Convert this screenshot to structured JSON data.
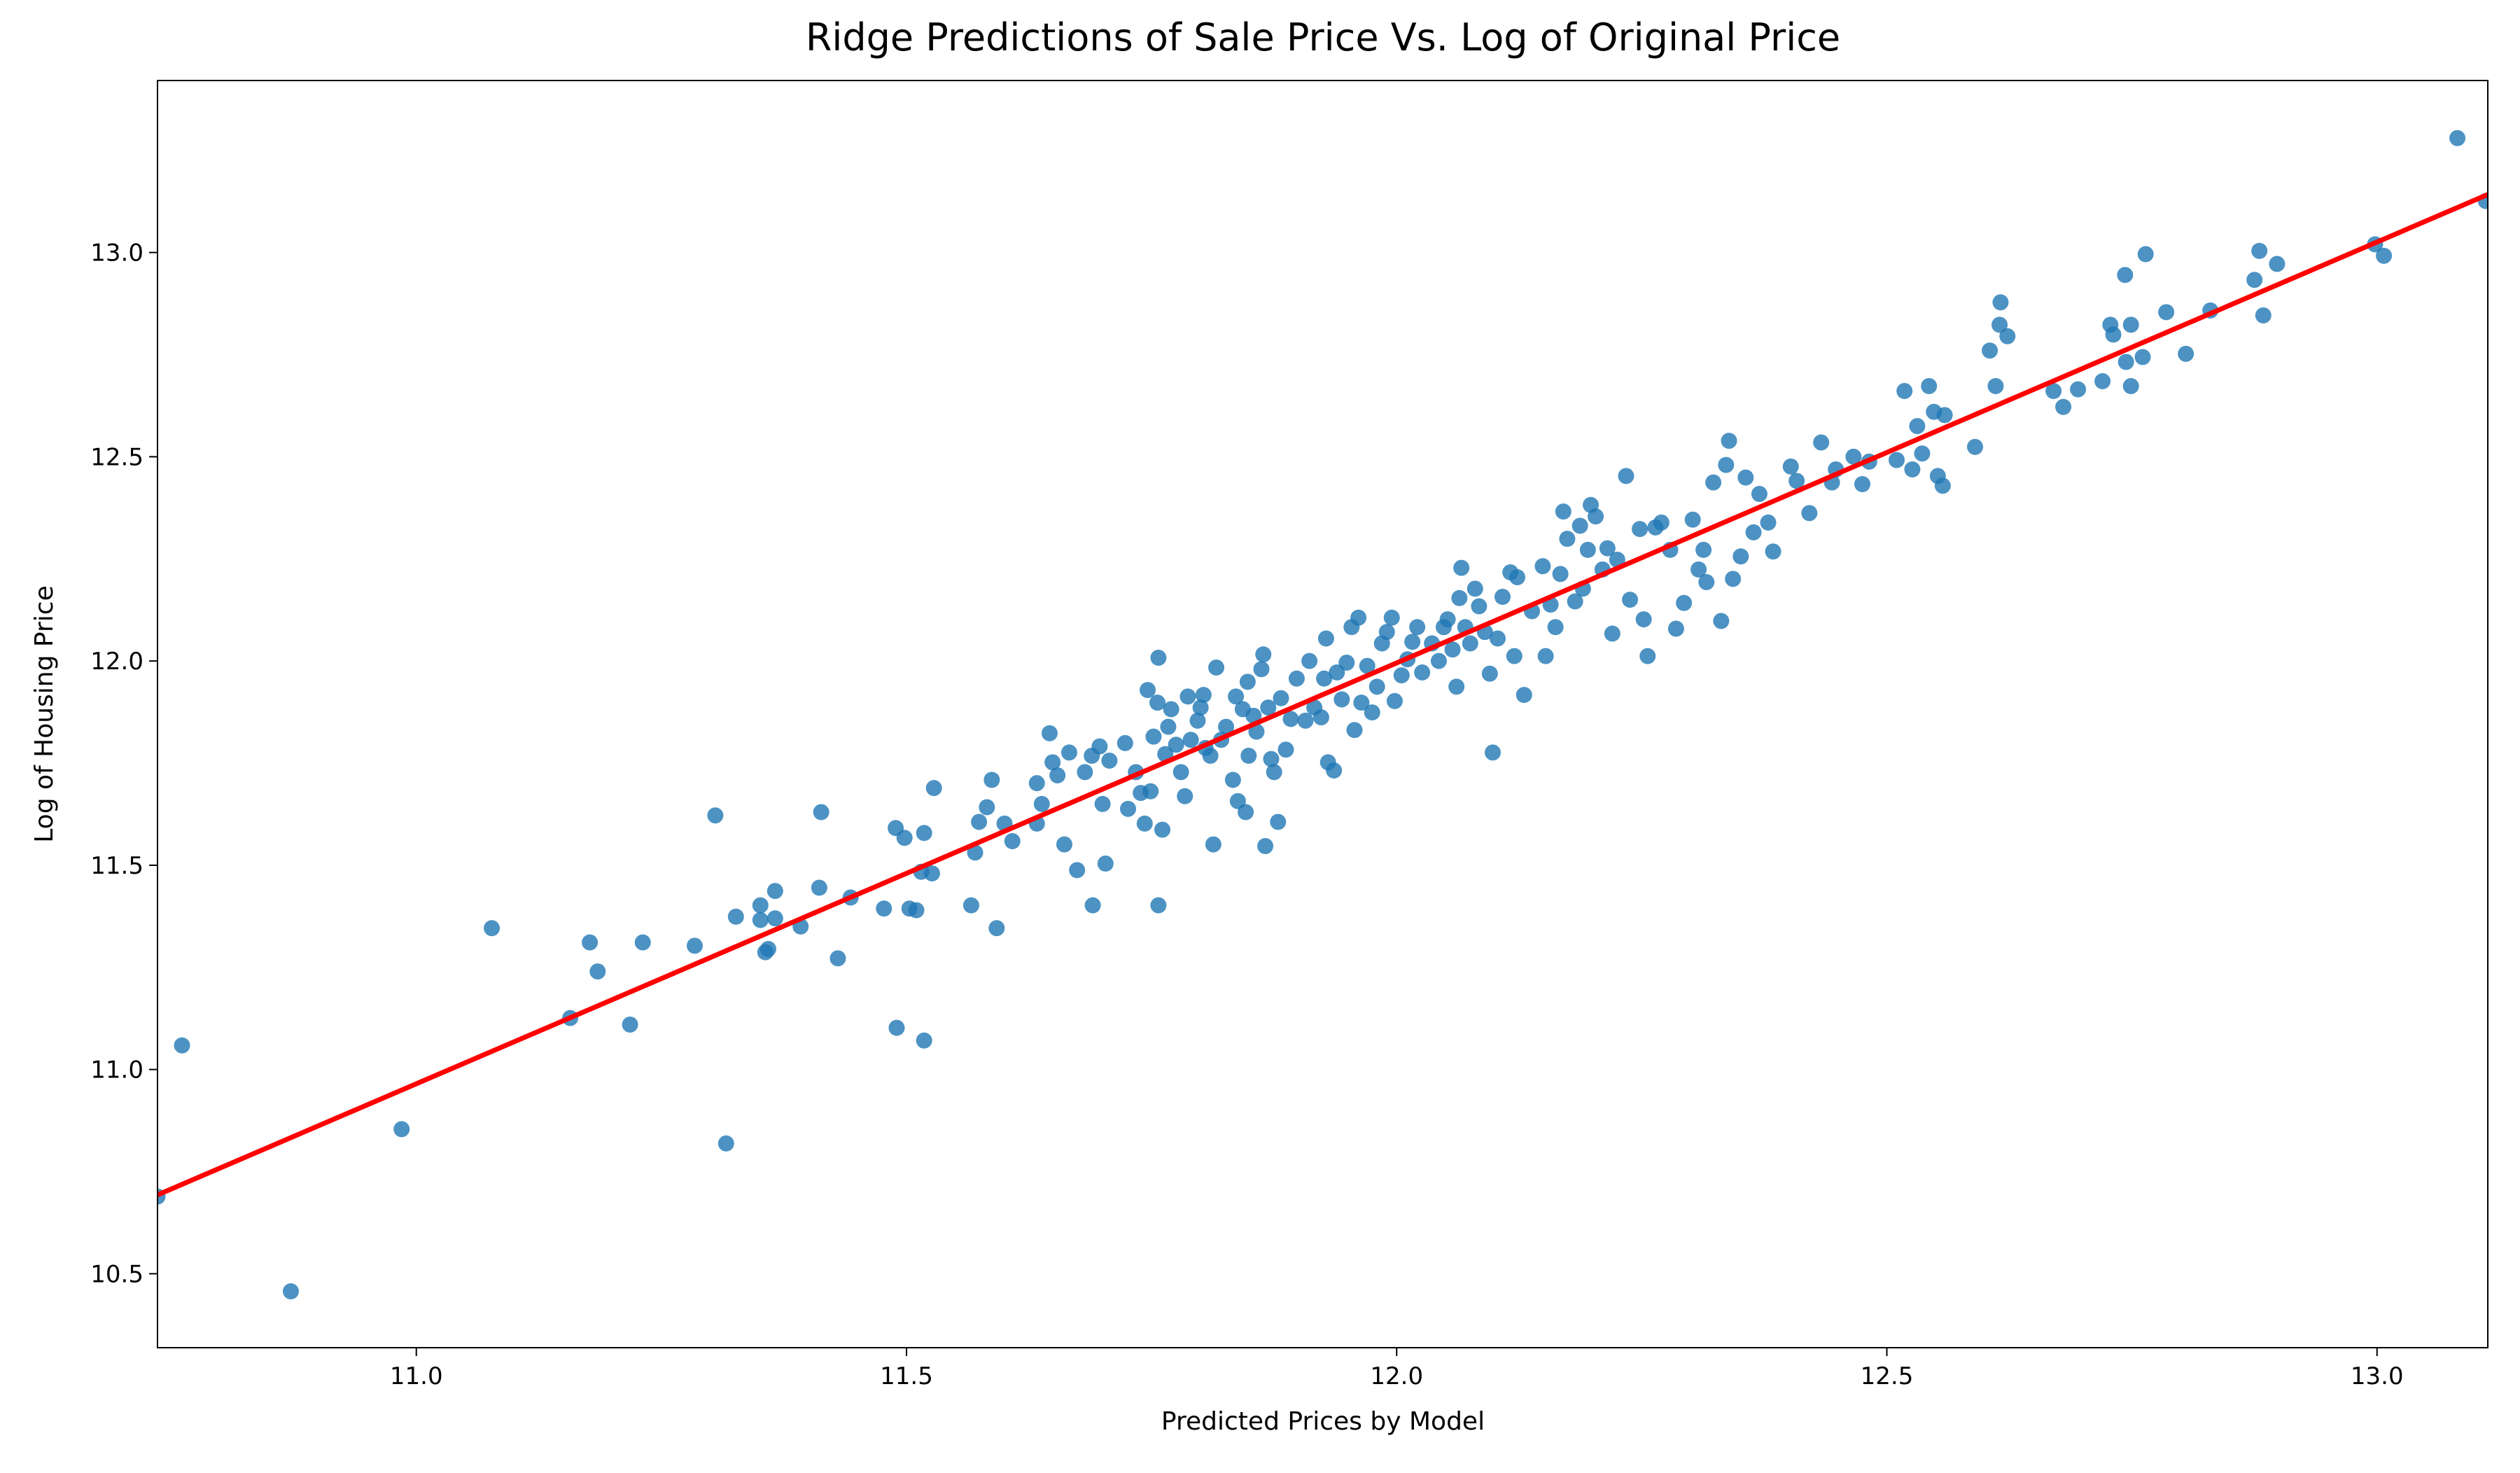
{
  "chart_data": {
    "type": "scatter",
    "title": "Ridge Predictions of Sale Price Vs. Log of Original Price",
    "xlabel": "Predicted Prices by Model",
    "ylabel": "Log of Housing Price",
    "xlim": [
      10.736,
      13.113
    ],
    "ylim": [
      10.319,
      13.421
    ],
    "xticks": [
      {
        "value": 11.0,
        "label": "11.0"
      },
      {
        "value": 11.5,
        "label": "11.5"
      },
      {
        "value": 12.0,
        "label": "12.0"
      },
      {
        "value": 12.5,
        "label": "12.5"
      },
      {
        "value": 13.0,
        "label": "13.0"
      }
    ],
    "yticks": [
      {
        "value": 10.5,
        "label": "10.5"
      },
      {
        "value": 11.0,
        "label": "11.0"
      },
      {
        "value": 11.5,
        "label": "11.5"
      },
      {
        "value": 12.0,
        "label": "12.0"
      },
      {
        "value": 12.5,
        "label": "12.5"
      },
      {
        "value": 13.0,
        "label": "13.0"
      }
    ],
    "series": [
      {
        "type": "scatter",
        "color": "#1f77b4",
        "x": [
          10.736,
          10.761,
          10.872,
          10.985,
          11.077,
          11.157,
          11.177,
          11.185,
          11.218,
          11.231,
          11.284,
          11.305,
          11.316,
          11.326,
          11.351,
          11.351,
          11.356,
          11.359,
          11.366,
          11.366,
          11.392,
          11.411,
          11.413,
          11.43,
          11.443,
          11.477,
          11.489,
          11.49,
          11.498,
          11.503,
          11.51,
          11.515,
          11.518,
          11.518,
          11.526,
          11.528,
          11.566,
          11.57,
          11.574,
          11.582,
          11.587,
          11.592,
          11.6,
          11.608,
          11.633,
          11.633,
          11.638,
          11.646,
          11.649,
          11.654,
          11.661,
          11.666,
          11.674,
          11.682,
          11.689,
          11.69,
          11.697,
          11.7,
          11.703,
          11.707,
          11.723,
          11.726,
          11.734,
          11.739,
          11.743,
          11.746,
          11.749,
          11.752,
          11.756,
          11.757,
          11.757,
          11.761,
          11.764,
          11.767,
          11.77,
          11.775,
          11.78,
          11.784,
          11.787,
          11.79,
          11.797,
          11.8,
          11.803,
          11.805,
          11.81,
          11.813,
          11.816,
          11.821,
          11.826,
          11.833,
          11.836,
          11.838,
          11.843,
          11.846,
          11.848,
          11.849,
          11.854,
          11.857,
          11.862,
          11.864,
          11.866,
          11.869,
          11.872,
          11.875,
          11.879,
          11.882,
          11.887,
          11.892,
          11.898,
          11.907,
          11.911,
          11.916,
          11.923,
          11.926,
          11.928,
          11.93,
          11.936,
          11.939,
          11.944,
          11.949,
          11.954,
          11.957,
          11.961,
          11.964,
          11.97,
          11.975,
          11.98,
          11.985,
          11.99,
          11.995,
          11.998,
          12.005,
          12.011,
          12.016,
          12.021,
          12.026,
          12.036,
          12.043,
          12.048,
          12.052,
          12.057,
          12.061,
          12.064,
          12.066,
          12.07,
          12.075,
          12.08,
          12.084,
          12.09,
          12.095,
          12.098,
          12.103,
          12.108,
          12.116,
          12.12,
          12.123,
          12.13,
          12.138,
          12.149,
          12.152,
          12.157,
          12.162,
          12.167,
          12.17,
          12.174,
          12.182,
          12.187,
          12.19,
          12.195,
          12.198,
          12.203,
          12.21,
          12.215,
          12.22,
          12.225,
          12.234,
          12.238,
          12.248,
          12.252,
          12.256,
          12.264,
          12.27,
          12.279,
          12.285,
          12.293,
          12.302,
          12.308,
          12.313,
          12.316,
          12.323,
          12.331,
          12.336,
          12.339,
          12.343,
          12.351,
          12.356,
          12.364,
          12.37,
          12.379,
          12.384,
          12.402,
          12.408,
          12.421,
          12.433,
          12.444,
          12.448,
          12.466,
          12.475,
          12.482,
          12.51,
          12.518,
          12.526,
          12.531,
          12.536,
          12.543,
          12.548,
          12.552,
          12.557,
          12.559,
          12.59,
          12.605,
          12.611,
          12.616,
          12.615,
          12.623,
          12.67,
          12.68,
          12.695,
          12.72,
          12.728,
          12.731,
          12.743,
          12.744,
          12.749,
          12.749,
          12.761,
          12.764,
          12.785,
          12.805,
          12.83,
          12.875,
          12.88,
          12.884,
          12.898,
          12.998,
          13.007,
          13.082,
          13.111
        ],
        "y": [
          10.689,
          11.059,
          10.457,
          10.854,
          11.346,
          11.126,
          11.311,
          11.24,
          11.11,
          11.311,
          11.303,
          11.622,
          10.819,
          11.374,
          11.402,
          11.366,
          11.287,
          11.295,
          11.437,
          11.37,
          11.35,
          11.445,
          11.63,
          11.272,
          11.421,
          11.394,
          11.591,
          11.102,
          11.567,
          11.394,
          11.39,
          11.484,
          11.579,
          11.071,
          11.48,
          11.689,
          11.402,
          11.531,
          11.606,
          11.642,
          11.709,
          11.346,
          11.602,
          11.559,
          11.602,
          11.701,
          11.65,
          11.823,
          11.752,
          11.72,
          11.551,
          11.776,
          11.488,
          11.728,
          11.768,
          11.402,
          11.791,
          11.65,
          11.504,
          11.756,
          11.799,
          11.638,
          11.728,
          11.677,
          11.602,
          11.929,
          11.681,
          11.815,
          11.898,
          12.008,
          11.402,
          11.587,
          11.772,
          11.839,
          11.882,
          11.795,
          11.728,
          11.669,
          11.913,
          11.807,
          11.854,
          11.886,
          11.917,
          11.787,
          11.768,
          11.551,
          11.984,
          11.807,
          11.839,
          11.709,
          11.913,
          11.657,
          11.882,
          11.63,
          11.949,
          11.768,
          11.866,
          11.827,
          11.98,
          12.016,
          11.547,
          11.886,
          11.76,
          11.728,
          11.606,
          11.909,
          11.783,
          11.858,
          11.957,
          11.854,
          12.0,
          11.886,
          11.862,
          11.957,
          12.055,
          11.752,
          11.732,
          11.972,
          11.906,
          11.996,
          12.083,
          11.831,
          12.106,
          11.898,
          11.988,
          11.874,
          11.937,
          12.043,
          12.071,
          12.106,
          11.902,
          11.965,
          12.004,
          12.047,
          12.083,
          11.972,
          12.043,
          12.0,
          12.083,
          12.102,
          12.028,
          11.937,
          12.154,
          12.228,
          12.083,
          12.043,
          12.177,
          12.134,
          12.071,
          11.969,
          11.776,
          12.055,
          12.157,
          12.217,
          12.012,
          12.205,
          11.917,
          12.122,
          12.232,
          12.012,
          12.138,
          12.083,
          12.213,
          12.366,
          12.299,
          12.146,
          12.331,
          12.177,
          12.272,
          12.382,
          12.354,
          12.224,
          12.276,
          12.067,
          12.248,
          12.453,
          12.15,
          12.323,
          12.102,
          12.012,
          12.327,
          12.339,
          12.272,
          12.079,
          12.142,
          12.346,
          12.224,
          12.272,
          12.193,
          12.437,
          12.098,
          12.48,
          12.539,
          12.201,
          12.256,
          12.449,
          12.315,
          12.409,
          12.339,
          12.268,
          12.476,
          12.441,
          12.362,
          12.535,
          12.437,
          12.469,
          12.5,
          12.433,
          12.488,
          12.492,
          12.661,
          12.469,
          12.575,
          12.508,
          12.673,
          12.61,
          12.453,
          12.429,
          12.602,
          12.524,
          12.76,
          12.673,
          12.878,
          12.823,
          12.795,
          12.661,
          12.622,
          12.665,
          12.685,
          12.823,
          12.799,
          12.945,
          12.732,
          12.673,
          12.823,
          12.744,
          12.996,
          12.854,
          12.752,
          12.858,
          12.933,
          13.004,
          12.846,
          12.972,
          13.02,
          12.992,
          13.28,
          13.126
        ]
      },
      {
        "type": "line",
        "color": "#ff0000",
        "x": [
          10.736,
          13.113
        ],
        "y": [
          10.693,
          13.142
        ]
      }
    ]
  }
}
